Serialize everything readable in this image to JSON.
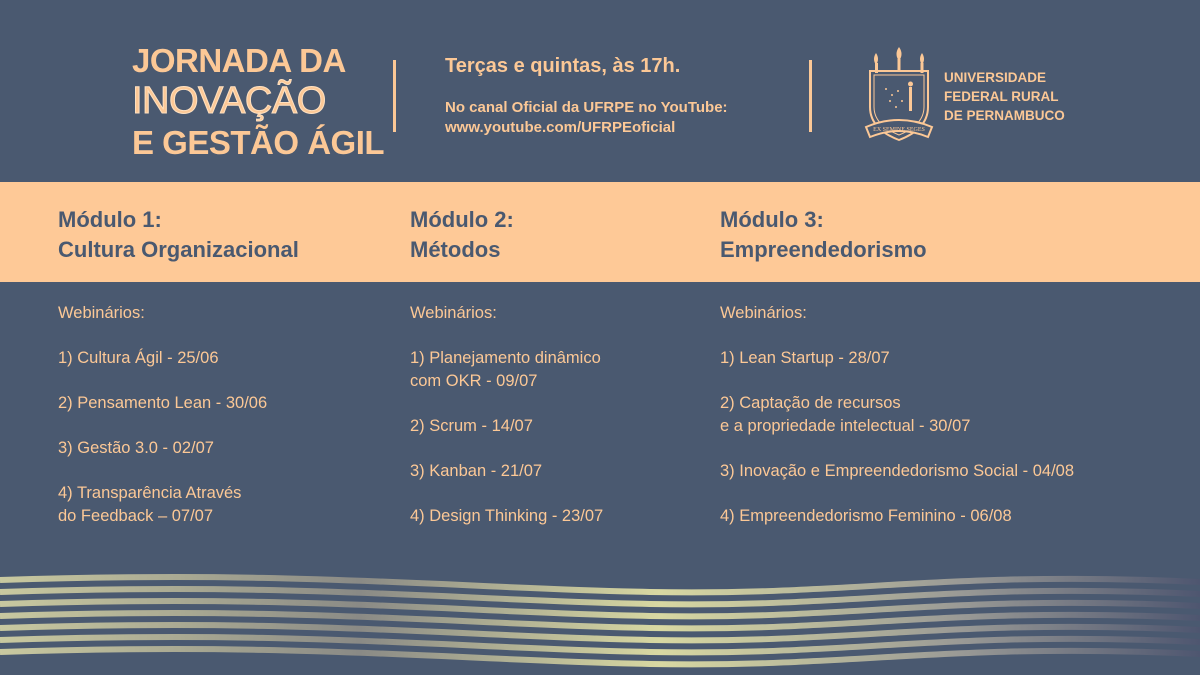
{
  "header": {
    "title_line1": "JORNADA DA",
    "title_line2": "INOVAÇÃO",
    "title_line3": "E GESTÃO ÁGIL",
    "schedule": "Terças e quintas, às 17h.",
    "channel_line1": "No canal Oficial da UFRPE no YouTube:",
    "channel_line2": "www.youtube.com/UFRPEoficial",
    "university": [
      "UNIVERSIDADE",
      "FEDERAL RURAL",
      "DE PERNAMBUCO"
    ],
    "seal_motto": "EX SEMINE SEGES"
  },
  "modules": [
    {
      "title": "Módulo 1:",
      "subtitle": "Cultura Organizacional",
      "label": "Webinários:",
      "items": [
        "1) Cultura Ágil - 25/06",
        "2) Pensamento Lean - 30/06",
        "3) Gestão 3.0 - 02/07",
        "4) Transparência Através\ndo Feedback – 07/07"
      ]
    },
    {
      "title": "Módulo 2:",
      "subtitle": "Métodos",
      "label": "Webinários:",
      "items": [
        "1) Planejamento dinâmico\ncom OKR - 09/07",
        "2) Scrum - 14/07",
        "3) Kanban - 21/07",
        "4) Design Thinking - 23/07"
      ]
    },
    {
      "title": "Módulo 3:",
      "subtitle": "Empreendedorismo",
      "label": "Webinários:",
      "items": [
        "1) Lean Startup - 28/07",
        "2) Captação de recursos\ne a propriedade intelectual - 30/07",
        "3) Inovação e Empreendedorismo Social - 04/08",
        "4) Empreendedorismo Feminino - 06/08"
      ]
    }
  ],
  "colors": {
    "background": "#4a5970",
    "accent": "#fcc896"
  }
}
